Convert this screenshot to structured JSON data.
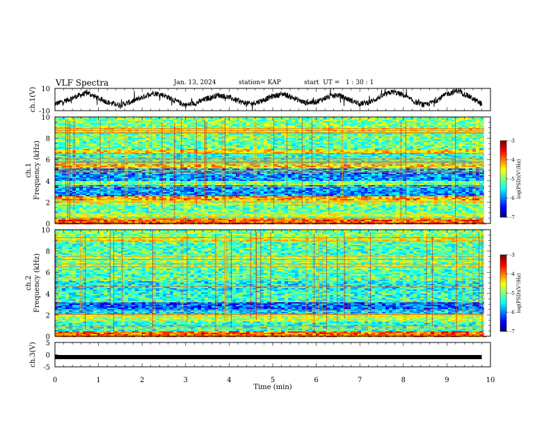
{
  "header": {
    "title": "VLF Spectra",
    "date": "Jan. 13, 2024",
    "station": "station= KAP",
    "start": "start  UT =   1 : 30 : 1"
  },
  "chart_data": [
    {
      "type": "line",
      "panel": "ch1_waveform",
      "ylabel": "ch.1(V)",
      "ylim": [
        -10,
        10
      ],
      "yticks": [
        "10",
        "-10"
      ],
      "xlim": [
        0,
        10
      ],
      "series": [
        {
          "x": [
            0,
            0.25,
            0.5,
            0.75,
            1,
            1.25,
            1.5,
            1.75,
            2,
            2.25,
            2.5,
            2.75,
            3,
            3.25,
            3.5,
            3.75,
            4,
            4.25,
            4.5,
            4.75,
            5,
            5.25,
            5.5,
            5.75,
            6,
            6.25,
            6.5,
            6.75,
            7,
            7.25,
            7.5,
            7.75,
            8,
            8.25,
            8.5,
            8.75,
            9,
            9.25,
            9.5,
            9.75,
            9.8
          ],
          "y": [
            -4,
            -1,
            3,
            6,
            1,
            -3,
            -5,
            -2,
            2,
            6,
            4,
            -1,
            -5,
            -3,
            1,
            4,
            2,
            -2,
            -4,
            -1,
            3,
            5,
            1,
            -3,
            -2,
            2,
            4,
            0,
            -4,
            -2,
            3,
            7,
            4,
            -2,
            -5,
            -1,
            5,
            8,
            3,
            -3,
            -4
          ]
        }
      ]
    },
    {
      "type": "heatmap",
      "panel": "ch1_spectrogram",
      "ylabel": "ch.1\nFrequency (kHz)",
      "xlim": [
        0,
        10
      ],
      "ylim": [
        0,
        10
      ],
      "yticks": [
        "0",
        "2",
        "4",
        "6",
        "8",
        "10"
      ],
      "colorbar": {
        "label": "log(PSD)(V²/Hz)",
        "range": [
          -7,
          -3
        ],
        "ticks": [
          "-3",
          "-4",
          "-5",
          "-6",
          "-7"
        ]
      },
      "bands_khz": [
        {
          "lo": 0.0,
          "hi": 0.4,
          "level": -3.8
        },
        {
          "lo": 0.4,
          "hi": 1.0,
          "level": -4.8
        },
        {
          "lo": 1.0,
          "hi": 1.8,
          "level": -5.1
        },
        {
          "lo": 1.8,
          "hi": 2.2,
          "level": -4.7
        },
        {
          "lo": 2.2,
          "hi": 2.6,
          "level": -4.1
        },
        {
          "lo": 2.6,
          "hi": 3.6,
          "level": -5.9
        },
        {
          "lo": 3.6,
          "hi": 4.0,
          "level": -5.0
        },
        {
          "lo": 4.0,
          "hi": 5.2,
          "level": -5.9
        },
        {
          "lo": 5.2,
          "hi": 5.6,
          "level": -4.3
        },
        {
          "lo": 5.6,
          "hi": 6.6,
          "level": -5.3
        },
        {
          "lo": 6.6,
          "hi": 7.0,
          "level": -4.4
        },
        {
          "lo": 7.0,
          "hi": 8.6,
          "level": -5.1
        },
        {
          "lo": 8.6,
          "hi": 9.0,
          "level": -4.5
        },
        {
          "lo": 9.0,
          "hi": 10.0,
          "level": -5.0
        }
      ]
    },
    {
      "type": "heatmap",
      "panel": "ch2_spectrogram",
      "ylabel": "ch.2\nFrequency (kHz)",
      "xlim": [
        0,
        10
      ],
      "ylim": [
        0,
        10
      ],
      "yticks": [
        "0",
        "2",
        "4",
        "6",
        "8",
        "10"
      ],
      "colorbar": {
        "label": "log(PSD)(V²/Hz)",
        "range": [
          -7,
          -3
        ],
        "ticks": [
          "-3",
          "-4",
          "-5",
          "-6",
          "-7"
        ]
      },
      "bands_khz": [
        {
          "lo": 0.0,
          "hi": 0.4,
          "level": -3.9
        },
        {
          "lo": 0.4,
          "hi": 1.4,
          "level": -5.3
        },
        {
          "lo": 1.4,
          "hi": 2.0,
          "level": -4.8
        },
        {
          "lo": 2.0,
          "hi": 2.4,
          "level": -5.6
        },
        {
          "lo": 2.4,
          "hi": 3.2,
          "level": -6.1
        },
        {
          "lo": 3.2,
          "hi": 4.2,
          "level": -5.3
        },
        {
          "lo": 4.2,
          "hi": 5.2,
          "level": -5.5
        },
        {
          "lo": 5.2,
          "hi": 6.4,
          "level": -5.2
        },
        {
          "lo": 6.4,
          "hi": 7.6,
          "level": -5.0
        },
        {
          "lo": 7.6,
          "hi": 8.8,
          "level": -5.2
        },
        {
          "lo": 8.8,
          "hi": 9.4,
          "level": -4.6
        },
        {
          "lo": 9.4,
          "hi": 10.0,
          "level": -5.0
        }
      ]
    },
    {
      "type": "line",
      "panel": "ch3_waveform",
      "ylabel": "ch.3(V)",
      "ylim": [
        -5,
        5
      ],
      "yticks": [
        "5",
        "0",
        "-5"
      ],
      "xlim": [
        0,
        10
      ],
      "xlabel": "Time (min)",
      "xticks": [
        "0",
        "1",
        "2",
        "3",
        "4",
        "5",
        "6",
        "7",
        "8",
        "9",
        "10"
      ],
      "series": [
        {
          "x": [
            0,
            9.8
          ],
          "y": [
            -1,
            -1
          ]
        }
      ]
    }
  ]
}
